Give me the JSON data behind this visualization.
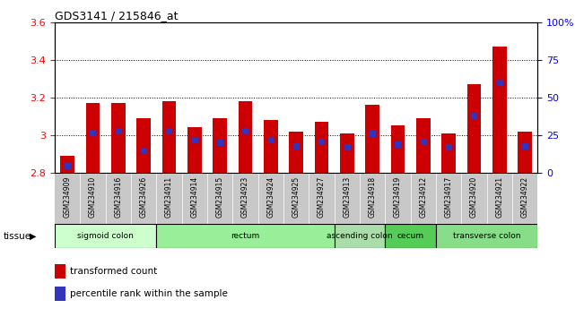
{
  "title": "GDS3141 / 215846_at",
  "samples": [
    "GSM234909",
    "GSM234910",
    "GSM234916",
    "GSM234926",
    "GSM234911",
    "GSM234914",
    "GSM234915",
    "GSM234923",
    "GSM234924",
    "GSM234925",
    "GSM234927",
    "GSM234913",
    "GSM234918",
    "GSM234919",
    "GSM234912",
    "GSM234917",
    "GSM234920",
    "GSM234921",
    "GSM234922"
  ],
  "transformed_count": [
    2.89,
    3.17,
    3.17,
    3.09,
    3.18,
    3.04,
    3.09,
    3.18,
    3.08,
    3.02,
    3.07,
    3.01,
    3.16,
    3.05,
    3.09,
    3.01,
    3.27,
    3.47,
    3.02
  ],
  "percentile_rank": [
    5,
    27,
    28,
    15,
    28,
    22,
    20,
    28,
    22,
    18,
    21,
    17,
    26,
    19,
    21,
    17,
    38,
    60,
    18
  ],
  "ylim_left": [
    2.8,
    3.6
  ],
  "ylim_right": [
    0,
    100
  ],
  "yticks_left": [
    2.8,
    3.0,
    3.2,
    3.4,
    3.6
  ],
  "ytick_labels_left": [
    "2.8",
    "3",
    "3.2",
    "3.4",
    "3.6"
  ],
  "yticks_right": [
    0,
    25,
    50,
    75,
    100
  ],
  "ytick_labels_right": [
    "0",
    "25",
    "50",
    "75",
    "100%"
  ],
  "bar_color": "#cc0000",
  "blue_color": "#3333bb",
  "tissue_groups": [
    {
      "label": "sigmoid colon",
      "start": 0,
      "end": 4,
      "color": "#ccffcc"
    },
    {
      "label": "rectum",
      "start": 4,
      "end": 11,
      "color": "#99ee99"
    },
    {
      "label": "ascending colon",
      "start": 11,
      "end": 13,
      "color": "#aaddaa"
    },
    {
      "label": "cecum",
      "start": 13,
      "end": 15,
      "color": "#55cc55"
    },
    {
      "label": "transverse colon",
      "start": 15,
      "end": 19,
      "color": "#88dd88"
    }
  ],
  "tissue_colors_exact": [
    "#ccffcc",
    "#99ee99",
    "#aaddaa",
    "#55cc55",
    "#88dd88"
  ]
}
